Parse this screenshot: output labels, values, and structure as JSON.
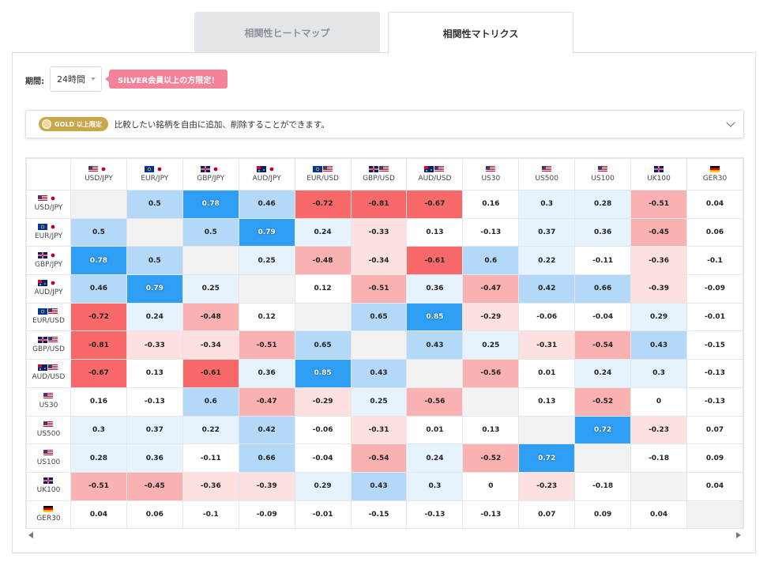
{
  "tabs": [
    {
      "label": "相関性ヒートマップ",
      "active": false
    },
    {
      "label": "相関性マトリクス",
      "active": true
    }
  ],
  "period": {
    "label": "期間:",
    "value": "24時間"
  },
  "silver_badge": "SILVER会員以上の方限定！",
  "gold": {
    "badge": "GOLD 以上限定",
    "text": "比較したい銘柄を自由に追加、削除することができます。"
  },
  "colors": {
    "strong_pos": "#2f9ef5",
    "mid_pos": "#b4d8f7",
    "weak_pos": "#e6f2fc",
    "strong_neg": "#f86a6a",
    "mid_neg": "#fab1b1",
    "weak_neg": "#fde0e0",
    "neutral": "#ffffff",
    "diag": "#f2f2f2"
  },
  "columns": [
    {
      "label": "USD/JPY",
      "flags": [
        "us",
        "jp"
      ]
    },
    {
      "label": "EUR/JPY",
      "flags": [
        "eu",
        "jp"
      ]
    },
    {
      "label": "GBP/JPY",
      "flags": [
        "gb",
        "jp"
      ]
    },
    {
      "label": "AUD/JPY",
      "flags": [
        "au",
        "jp"
      ]
    },
    {
      "label": "EUR/USD",
      "flags": [
        "eu",
        "us"
      ]
    },
    {
      "label": "GBP/USD",
      "flags": [
        "gb",
        "us"
      ]
    },
    {
      "label": "AUD/USD",
      "flags": [
        "au",
        "us"
      ]
    },
    {
      "label": "US30",
      "flags": [
        "us"
      ]
    },
    {
      "label": "US500",
      "flags": [
        "us"
      ]
    },
    {
      "label": "US100",
      "flags": [
        "us"
      ]
    },
    {
      "label": "UK100",
      "flags": [
        "gb"
      ]
    },
    {
      "label": "GER30",
      "flags": [
        "de"
      ]
    }
  ],
  "rows": [
    {
      "label": "USD/JPY",
      "flags": [
        "us",
        "jp"
      ],
      "values": [
        null,
        "0.5",
        "0.78",
        "0.46",
        "-0.72",
        "-0.81",
        "-0.67",
        "0.16",
        "0.3",
        "0.28",
        "-0.51",
        "0.04"
      ]
    },
    {
      "label": "EUR/JPY",
      "flags": [
        "eu",
        "jp"
      ],
      "values": [
        "0.5",
        null,
        "0.5",
        "0.79",
        "0.24",
        "-0.33",
        "0.13",
        "-0.13",
        "0.37",
        "0.36",
        "-0.45",
        "0.06"
      ]
    },
    {
      "label": "GBP/JPY",
      "flags": [
        "gb",
        "jp"
      ],
      "values": [
        "0.78",
        "0.5",
        null,
        "0.25",
        "-0.48",
        "-0.34",
        "-0.61",
        "0.6",
        "0.22",
        "-0.11",
        "-0.36",
        "-0.1"
      ]
    },
    {
      "label": "AUD/JPY",
      "flags": [
        "au",
        "jp"
      ],
      "values": [
        "0.46",
        "0.79",
        "0.25",
        null,
        "0.12",
        "-0.51",
        "0.36",
        "-0.47",
        "0.42",
        "0.66",
        "-0.39",
        "-0.09"
      ]
    },
    {
      "label": "EUR/USD",
      "flags": [
        "eu",
        "us"
      ],
      "values": [
        "-0.72",
        "0.24",
        "-0.48",
        "0.12",
        null,
        "0.65",
        "0.85",
        "-0.29",
        "-0.06",
        "-0.04",
        "0.29",
        "-0.01"
      ]
    },
    {
      "label": "GBP/USD",
      "flags": [
        "gb",
        "us"
      ],
      "values": [
        "-0.81",
        "-0.33",
        "-0.34",
        "-0.51",
        "0.65",
        null,
        "0.43",
        "0.25",
        "-0.31",
        "-0.54",
        "0.43",
        "-0.15"
      ]
    },
    {
      "label": "AUD/USD",
      "flags": [
        "au",
        "us"
      ],
      "values": [
        "-0.67",
        "0.13",
        "-0.61",
        "0.36",
        "0.85",
        "0.43",
        null,
        "-0.56",
        "0.01",
        "0.24",
        "0.3",
        "-0.13"
      ]
    },
    {
      "label": "US30",
      "flags": [
        "us"
      ],
      "values": [
        "0.16",
        "-0.13",
        "0.6",
        "-0.47",
        "-0.29",
        "0.25",
        "-0.56",
        null,
        "0.13",
        "-0.52",
        "0",
        "-0.13"
      ]
    },
    {
      "label": "US500",
      "flags": [
        "us"
      ],
      "values": [
        "0.3",
        "0.37",
        "0.22",
        "0.42",
        "-0.06",
        "-0.31",
        "0.01",
        "0.13",
        null,
        "0.72",
        "-0.23",
        "0.07"
      ]
    },
    {
      "label": "US100",
      "flags": [
        "us"
      ],
      "values": [
        "0.28",
        "0.36",
        "-0.11",
        "0.66",
        "-0.04",
        "-0.54",
        "0.24",
        "-0.52",
        "0.72",
        null,
        "-0.18",
        "0.09"
      ]
    },
    {
      "label": "UK100",
      "flags": [
        "gb"
      ],
      "values": [
        "-0.51",
        "-0.45",
        "-0.36",
        "-0.39",
        "0.29",
        "0.43",
        "0.3",
        "0",
        "-0.23",
        "-0.18",
        null,
        "0.04"
      ]
    },
    {
      "label": "GER30",
      "flags": [
        "de"
      ],
      "values": [
        "0.04",
        "0.06",
        "-0.1",
        "-0.09",
        "-0.01",
        "-0.15",
        "-0.13",
        "-0.13",
        "0.07",
        "0.09",
        "0.04",
        null
      ]
    }
  ]
}
